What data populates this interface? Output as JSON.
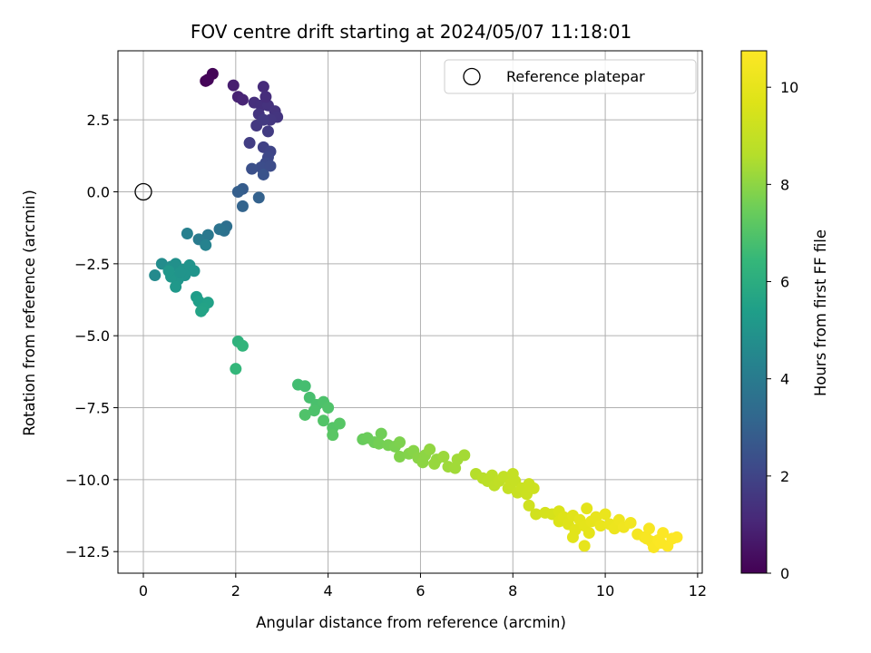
{
  "chart_data": {
    "type": "scatter",
    "title": "FOV centre drift starting at 2024/05/07 11:18:01",
    "xlabel": "Angular distance from reference (arcmin)",
    "ylabel": "Rotation from reference (arcmin)",
    "xlim": [
      -0.55,
      12.1
    ],
    "ylim": [
      -13.25,
      4.9
    ],
    "xticks": [
      0,
      2,
      4,
      6,
      8,
      10,
      12
    ],
    "yticks": [
      2.5,
      0.0,
      -2.5,
      -5.0,
      -7.5,
      -10.0,
      -12.5
    ],
    "xtick_labels": [
      "0",
      "2",
      "4",
      "6",
      "8",
      "10",
      "12"
    ],
    "ytick_labels": [
      "2.5",
      "0.0",
      "−2.5",
      "−5.0",
      "−7.5",
      "−10.0",
      "−12.5"
    ],
    "grid": true,
    "colormap": "viridis",
    "colorbar": {
      "label": "Hours from first FF file",
      "range": [
        0,
        10.75
      ],
      "ticks": [
        0,
        2,
        4,
        6,
        8,
        10
      ],
      "tick_labels": [
        "0",
        "2",
        "4",
        "6",
        "8",
        "10"
      ]
    },
    "legend": {
      "position": "top-right",
      "entries": [
        "Reference platepar"
      ]
    },
    "reference_point": {
      "x": 0,
      "y": 0
    },
    "points": [
      {
        "x": 1.35,
        "y": 3.85,
        "t": 0.05
      },
      {
        "x": 1.5,
        "y": 4.1,
        "t": 0.1
      },
      {
        "x": 1.4,
        "y": 3.9,
        "t": 0.15
      },
      {
        "x": 1.95,
        "y": 3.7,
        "t": 0.8
      },
      {
        "x": 2.05,
        "y": 3.3,
        "t": 0.9
      },
      {
        "x": 2.15,
        "y": 3.2,
        "t": 1.0
      },
      {
        "x": 2.6,
        "y": 3.65,
        "t": 1.2
      },
      {
        "x": 2.4,
        "y": 3.1,
        "t": 1.3
      },
      {
        "x": 2.55,
        "y": 3.0,
        "t": 1.35
      },
      {
        "x": 2.7,
        "y": 3.0,
        "t": 1.4
      },
      {
        "x": 2.85,
        "y": 2.8,
        "t": 1.45
      },
      {
        "x": 2.5,
        "y": 2.7,
        "t": 1.5
      },
      {
        "x": 2.9,
        "y": 2.6,
        "t": 1.5
      },
      {
        "x": 2.65,
        "y": 3.3,
        "t": 1.25
      },
      {
        "x": 2.75,
        "y": 2.5,
        "t": 1.55
      },
      {
        "x": 2.45,
        "y": 2.3,
        "t": 1.6
      },
      {
        "x": 2.7,
        "y": 2.1,
        "t": 1.7
      },
      {
        "x": 2.6,
        "y": 2.5,
        "t": 1.65
      },
      {
        "x": 2.3,
        "y": 1.7,
        "t": 1.75
      },
      {
        "x": 2.6,
        "y": 1.55,
        "t": 1.9
      },
      {
        "x": 2.75,
        "y": 1.4,
        "t": 2.0
      },
      {
        "x": 2.7,
        "y": 1.2,
        "t": 2.1
      },
      {
        "x": 2.65,
        "y": 1.0,
        "t": 2.2
      },
      {
        "x": 2.55,
        "y": 0.85,
        "t": 2.3
      },
      {
        "x": 2.35,
        "y": 0.8,
        "t": 2.4
      },
      {
        "x": 2.6,
        "y": 0.6,
        "t": 2.5
      },
      {
        "x": 2.75,
        "y": 0.9,
        "t": 2.25
      },
      {
        "x": 2.15,
        "y": 0.1,
        "t": 2.8
      },
      {
        "x": 2.05,
        "y": 0.0,
        "t": 2.9
      },
      {
        "x": 2.5,
        "y": -0.2,
        "t": 3.0
      },
      {
        "x": 2.15,
        "y": -0.5,
        "t": 3.1
      },
      {
        "x": 1.8,
        "y": -1.2,
        "t": 3.5
      },
      {
        "x": 1.75,
        "y": -1.35,
        "t": 3.6
      },
      {
        "x": 1.65,
        "y": -1.3,
        "t": 3.7
      },
      {
        "x": 1.4,
        "y": -1.5,
        "t": 3.9
      },
      {
        "x": 1.2,
        "y": -1.65,
        "t": 4.0
      },
      {
        "x": 0.95,
        "y": -1.45,
        "t": 4.2
      },
      {
        "x": 1.35,
        "y": -1.85,
        "t": 4.3
      },
      {
        "x": 0.25,
        "y": -2.9,
        "t": 4.6
      },
      {
        "x": 0.4,
        "y": -2.5,
        "t": 4.7
      },
      {
        "x": 0.6,
        "y": -2.6,
        "t": 4.8
      },
      {
        "x": 0.7,
        "y": -2.5,
        "t": 4.85
      },
      {
        "x": 0.85,
        "y": -2.7,
        "t": 4.9
      },
      {
        "x": 1.0,
        "y": -2.55,
        "t": 4.95
      },
      {
        "x": 1.1,
        "y": -2.75,
        "t": 5.0
      },
      {
        "x": 0.9,
        "y": -2.9,
        "t": 5.0
      },
      {
        "x": 0.75,
        "y": -3.05,
        "t": 5.05
      },
      {
        "x": 0.6,
        "y": -2.95,
        "t": 5.1
      },
      {
        "x": 0.7,
        "y": -3.3,
        "t": 5.15
      },
      {
        "x": 0.55,
        "y": -2.75,
        "t": 5.1
      },
      {
        "x": 0.8,
        "y": -2.8,
        "t": 5.0
      },
      {
        "x": 1.15,
        "y": -3.65,
        "t": 5.3
      },
      {
        "x": 1.2,
        "y": -3.8,
        "t": 5.4
      },
      {
        "x": 1.4,
        "y": -3.85,
        "t": 5.5
      },
      {
        "x": 1.3,
        "y": -4.05,
        "t": 5.55
      },
      {
        "x": 1.25,
        "y": -4.15,
        "t": 5.6
      },
      {
        "x": 2.05,
        "y": -5.2,
        "t": 6.2
      },
      {
        "x": 2.15,
        "y": -5.35,
        "t": 6.3
      },
      {
        "x": 2.0,
        "y": -6.15,
        "t": 6.4
      },
      {
        "x": 3.35,
        "y": -6.7,
        "t": 6.7
      },
      {
        "x": 3.5,
        "y": -6.75,
        "t": 6.75
      },
      {
        "x": 3.6,
        "y": -7.15,
        "t": 6.8
      },
      {
        "x": 3.75,
        "y": -7.4,
        "t": 6.85
      },
      {
        "x": 3.9,
        "y": -7.3,
        "t": 6.9
      },
      {
        "x": 4.0,
        "y": -7.5,
        "t": 6.95
      },
      {
        "x": 3.7,
        "y": -7.6,
        "t": 6.9
      },
      {
        "x": 3.5,
        "y": -7.75,
        "t": 6.95
      },
      {
        "x": 3.9,
        "y": -7.95,
        "t": 7.0
      },
      {
        "x": 4.1,
        "y": -8.2,
        "t": 7.05
      },
      {
        "x": 4.25,
        "y": -8.05,
        "t": 7.1
      },
      {
        "x": 4.1,
        "y": -8.45,
        "t": 7.15
      },
      {
        "x": 4.75,
        "y": -8.6,
        "t": 7.4
      },
      {
        "x": 4.85,
        "y": -8.55,
        "t": 7.45
      },
      {
        "x": 5.0,
        "y": -8.7,
        "t": 7.5
      },
      {
        "x": 5.15,
        "y": -8.4,
        "t": 7.55
      },
      {
        "x": 5.1,
        "y": -8.75,
        "t": 7.6
      },
      {
        "x": 5.3,
        "y": -8.8,
        "t": 7.65
      },
      {
        "x": 5.45,
        "y": -8.85,
        "t": 7.7
      },
      {
        "x": 5.55,
        "y": -8.7,
        "t": 7.75
      },
      {
        "x": 5.55,
        "y": -9.2,
        "t": 7.8
      },
      {
        "x": 5.75,
        "y": -9.1,
        "t": 7.85
      },
      {
        "x": 5.85,
        "y": -9.0,
        "t": 7.9
      },
      {
        "x": 5.95,
        "y": -9.25,
        "t": 7.95
      },
      {
        "x": 6.1,
        "y": -9.15,
        "t": 8.0
      },
      {
        "x": 6.05,
        "y": -9.4,
        "t": 8.0
      },
      {
        "x": 6.2,
        "y": -8.95,
        "t": 8.05
      },
      {
        "x": 6.35,
        "y": -9.3,
        "t": 8.1
      },
      {
        "x": 6.3,
        "y": -9.45,
        "t": 8.15
      },
      {
        "x": 6.5,
        "y": -9.2,
        "t": 8.2
      },
      {
        "x": 6.6,
        "y": -9.55,
        "t": 8.25
      },
      {
        "x": 6.75,
        "y": -9.6,
        "t": 8.3
      },
      {
        "x": 6.8,
        "y": -9.3,
        "t": 8.3
      },
      {
        "x": 6.95,
        "y": -9.15,
        "t": 8.35
      },
      {
        "x": 7.2,
        "y": -9.8,
        "t": 8.6
      },
      {
        "x": 7.35,
        "y": -9.95,
        "t": 8.7
      },
      {
        "x": 7.45,
        "y": -10.05,
        "t": 8.75
      },
      {
        "x": 7.55,
        "y": -9.85,
        "t": 8.8
      },
      {
        "x": 7.6,
        "y": -10.2,
        "t": 8.85
      },
      {
        "x": 7.7,
        "y": -10.05,
        "t": 8.9
      },
      {
        "x": 7.8,
        "y": -9.9,
        "t": 8.95
      },
      {
        "x": 7.9,
        "y": -10.3,
        "t": 9.0
      },
      {
        "x": 7.95,
        "y": -10.15,
        "t": 9.05
      },
      {
        "x": 8.05,
        "y": -10.05,
        "t": 9.05
      },
      {
        "x": 8.0,
        "y": -9.8,
        "t": 9.0
      },
      {
        "x": 8.1,
        "y": -10.45,
        "t": 9.1
      },
      {
        "x": 8.2,
        "y": -10.3,
        "t": 9.15
      },
      {
        "x": 8.3,
        "y": -10.5,
        "t": 9.2
      },
      {
        "x": 8.45,
        "y": -10.3,
        "t": 9.25
      },
      {
        "x": 8.35,
        "y": -10.15,
        "t": 9.2
      },
      {
        "x": 8.35,
        "y": -10.9,
        "t": 9.3
      },
      {
        "x": 8.5,
        "y": -11.2,
        "t": 9.35
      },
      {
        "x": 8.7,
        "y": -11.15,
        "t": 9.45
      },
      {
        "x": 8.85,
        "y": -11.2,
        "t": 9.5
      },
      {
        "x": 9.0,
        "y": -11.1,
        "t": 9.6
      },
      {
        "x": 9.0,
        "y": -11.45,
        "t": 9.65
      },
      {
        "x": 9.1,
        "y": -11.3,
        "t": 9.7
      },
      {
        "x": 9.2,
        "y": -11.55,
        "t": 9.75
      },
      {
        "x": 9.3,
        "y": -11.25,
        "t": 9.8
      },
      {
        "x": 9.35,
        "y": -11.75,
        "t": 9.85
      },
      {
        "x": 9.45,
        "y": -11.4,
        "t": 9.9
      },
      {
        "x": 9.55,
        "y": -11.6,
        "t": 9.95
      },
      {
        "x": 9.6,
        "y": -11.0,
        "t": 9.9
      },
      {
        "x": 9.7,
        "y": -11.45,
        "t": 10.0
      },
      {
        "x": 9.8,
        "y": -11.3,
        "t": 10.05
      },
      {
        "x": 9.9,
        "y": -11.6,
        "t": 10.1
      },
      {
        "x": 10.0,
        "y": -11.2,
        "t": 10.1
      },
      {
        "x": 10.1,
        "y": -11.55,
        "t": 10.15
      },
      {
        "x": 10.2,
        "y": -11.7,
        "t": 10.2
      },
      {
        "x": 10.3,
        "y": -11.4,
        "t": 10.25
      },
      {
        "x": 10.4,
        "y": -11.65,
        "t": 10.3
      },
      {
        "x": 10.55,
        "y": -11.5,
        "t": 10.35
      },
      {
        "x": 9.55,
        "y": -12.3,
        "t": 10.0
      },
      {
        "x": 9.3,
        "y": -12.0,
        "t": 9.85
      },
      {
        "x": 9.65,
        "y": -11.85,
        "t": 9.95
      },
      {
        "x": 10.7,
        "y": -11.9,
        "t": 10.45
      },
      {
        "x": 10.85,
        "y": -12.0,
        "t": 10.5
      },
      {
        "x": 10.95,
        "y": -11.7,
        "t": 10.55
      },
      {
        "x": 11.0,
        "y": -12.15,
        "t": 10.6
      },
      {
        "x": 11.05,
        "y": -12.35,
        "t": 10.6
      },
      {
        "x": 11.15,
        "y": -12.1,
        "t": 10.65
      },
      {
        "x": 11.25,
        "y": -11.85,
        "t": 10.7
      },
      {
        "x": 11.35,
        "y": -12.3,
        "t": 10.7
      },
      {
        "x": 11.45,
        "y": -12.05,
        "t": 10.72
      },
      {
        "x": 11.55,
        "y": -12.0,
        "t": 10.75
      },
      {
        "x": 11.2,
        "y": -12.2,
        "t": 10.68
      },
      {
        "x": 10.9,
        "y": -12.05,
        "t": 10.55
      }
    ]
  }
}
